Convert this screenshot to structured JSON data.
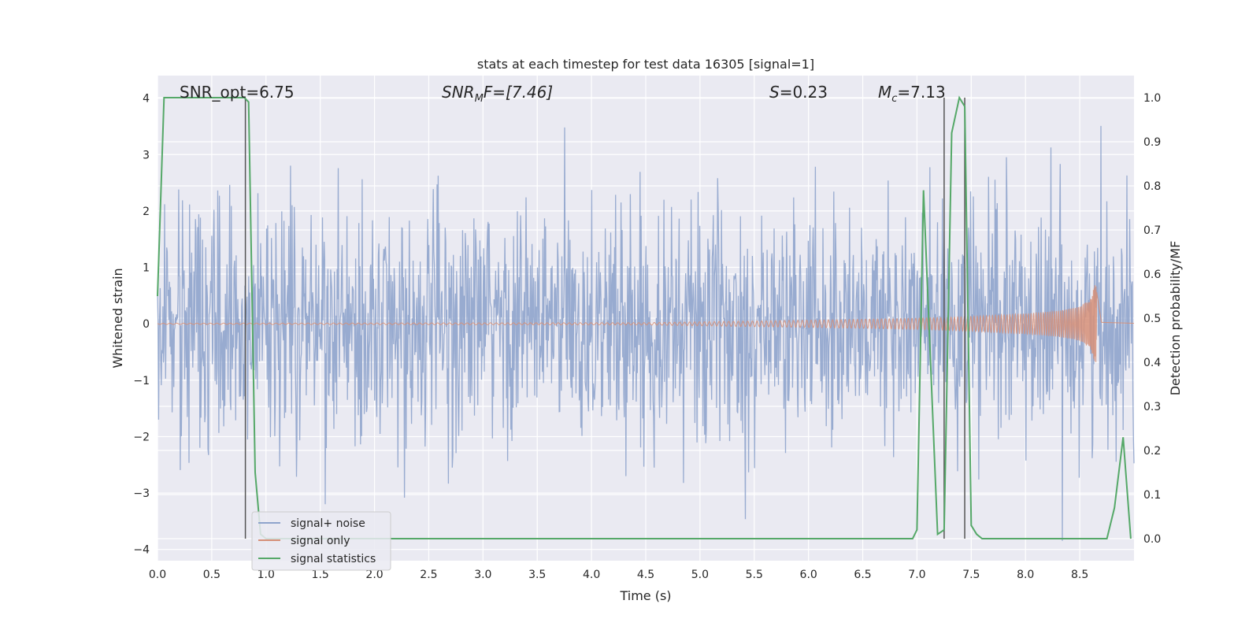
{
  "chart_data": {
    "type": "line",
    "title": "stats at each timestep for test data 16305 [signal=1]",
    "xlabel": "Time (s)",
    "ylabel_left": "Whitened strain",
    "ylabel_right": "Detection probability/MF",
    "xlim": [
      0.0,
      9.0
    ],
    "ylim_left": [
      -4.2,
      4.4
    ],
    "ylim_right": [
      -0.05,
      1.05
    ],
    "x_ticks": [
      "0.0",
      "0.5",
      "1.0",
      "1.5",
      "2.0",
      "2.5",
      "3.0",
      "3.5",
      "4.0",
      "4.5",
      "5.0",
      "5.5",
      "6.0",
      "6.5",
      "7.0",
      "7.5",
      "8.0",
      "8.5"
    ],
    "y_ticks_left": [
      "4",
      "3",
      "2",
      "1",
      "0",
      "−1",
      "−2",
      "−3",
      "−4"
    ],
    "y_ticks_right": [
      "1.0",
      "0.9",
      "0.8",
      "0.7",
      "0.6",
      "0.5",
      "0.4",
      "0.3",
      "0.2",
      "0.1",
      "0.0"
    ],
    "grid": true,
    "legend_position": "lower-left",
    "annotations": [
      {
        "text": "SNR_opt=6.75",
        "x": 0.2,
        "y": 4.1
      },
      {
        "text": "SNRMF=[7.46]",
        "x": 2.6,
        "y": 4.1
      },
      {
        "text": "S=0.23",
        "x": 5.6,
        "y": 4.1
      },
      {
        "text": "Mc=7.13",
        "x": 6.6,
        "y": 4.1
      }
    ],
    "vertical_lines_x": [
      0.81,
      7.25,
      7.44
    ],
    "series": [
      {
        "name": "signal+ noise",
        "axis": "left",
        "color": "#8fa4cc",
        "description_values": "approx. white noise, sd ~1.0, range ~-3.8 to 3.9, 1800 samples from 0 to 9 s"
      },
      {
        "name": "signal only",
        "axis": "left",
        "color": "#d68f78",
        "envelope": {
          "x": [
            0.0,
            4.5,
            5.5,
            6.5,
            7.0,
            7.5,
            8.0,
            8.3,
            8.5,
            8.6,
            8.65,
            8.7,
            9.0
          ],
          "amp": [
            0.01,
            0.02,
            0.05,
            0.08,
            0.1,
            0.13,
            0.18,
            0.23,
            0.3,
            0.45,
            0.75,
            0.03,
            0.01
          ]
        }
      },
      {
        "name": "signal statistics",
        "axis": "right",
        "color": "#55a868",
        "x": [
          0.0,
          0.06,
          0.12,
          0.3,
          0.6,
          0.8,
          0.84,
          0.9,
          0.95,
          1.0,
          5.4,
          6.96,
          7.0,
          7.06,
          7.19,
          7.25,
          7.32,
          7.39,
          7.44,
          7.5,
          7.55,
          7.6,
          8.5,
          8.75,
          8.82,
          8.9,
          8.97
        ],
        "y": [
          0.55,
          1.0,
          1.0,
          1.0,
          1.0,
          1.0,
          0.99,
          0.15,
          0.01,
          0.0,
          0.0,
          0.0,
          0.02,
          0.79,
          0.01,
          0.02,
          0.92,
          1.0,
          0.98,
          0.03,
          0.01,
          0.0,
          0.0,
          0.0,
          0.07,
          0.23,
          0.0
        ]
      }
    ]
  },
  "annotation_parts": {
    "snr_opt": "SNR_opt=6.75",
    "snrmf_main": "SNR",
    "snrmf_sub": "M",
    "snrmf_rest": "F=[7.46]",
    "s_main": "S",
    "s_rest": "=0.23",
    "mc_main": "M",
    "mc_sub": "c",
    "mc_rest": "=7.13"
  },
  "legend": {
    "items": [
      "signal+ noise",
      "signal only",
      "signal statistics"
    ]
  }
}
